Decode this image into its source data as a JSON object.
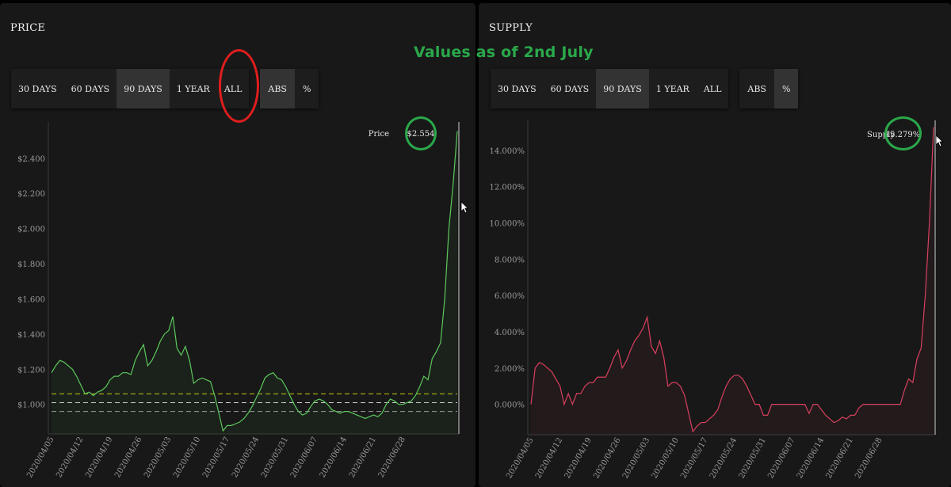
{
  "annotation": {
    "text": "Values as of 2nd July",
    "color": "#2aa84a"
  },
  "left_panel": {
    "title": "PRICE",
    "toolbar": {
      "range_buttons": [
        "30 DAYS",
        "60 DAYS",
        "90 DAYS",
        "1 YEAR",
        "ALL"
      ],
      "mode_buttons": [
        "ABS",
        "%"
      ],
      "active_range": "90 DAYS",
      "active_mode": "ABS"
    }
  },
  "right_panel": {
    "title": "SUPPLY",
    "toolbar": {
      "range_buttons": [
        "30 DAYS",
        "60 DAYS",
        "90 DAYS",
        "1 YEAR",
        "ALL"
      ],
      "mode_buttons": [
        "ABS",
        "%"
      ],
      "active_range": "90 DAYS",
      "active_mode": "%"
    }
  },
  "colors": {
    "price_line": "#5cc85c",
    "supply_line": "#d8405e",
    "ring_red": "#e01e1e",
    "ring_green": "#2aa84a"
  },
  "chart_data": [
    {
      "type": "line",
      "title": "PRICE",
      "series": [
        {
          "name": "Price",
          "current_value": "$2.554",
          "values": [
            1.18,
            1.22,
            1.25,
            1.24,
            1.22,
            1.2,
            1.16,
            1.11,
            1.06,
            1.07,
            1.05,
            1.07,
            1.08,
            1.1,
            1.14,
            1.16,
            1.16,
            1.18,
            1.18,
            1.17,
            1.25,
            1.3,
            1.34,
            1.22,
            1.25,
            1.3,
            1.36,
            1.4,
            1.42,
            1.5,
            1.32,
            1.28,
            1.33,
            1.25,
            1.12,
            1.14,
            1.15,
            1.14,
            1.13,
            1.05,
            0.95,
            0.85,
            0.88,
            0.88,
            0.89,
            0.9,
            0.92,
            0.95,
            0.99,
            1.04,
            1.09,
            1.15,
            1.17,
            1.18,
            1.15,
            1.14,
            1.1,
            1.05,
            1.0,
            0.96,
            0.94,
            0.95,
            0.99,
            1.02,
            1.03,
            1.02,
            1.0,
            0.97,
            0.96,
            0.95,
            0.96,
            0.96,
            0.95,
            0.94,
            0.93,
            0.92,
            0.93,
            0.94,
            0.93,
            0.95,
            1.0,
            1.03,
            1.02,
            1.0,
            1.0,
            1.01,
            1.02,
            1.05,
            1.1,
            1.16,
            1.14,
            1.26,
            1.3,
            1.35,
            1.6,
            2.0,
            2.25,
            2.554
          ]
        }
      ],
      "reference_lines": [
        1.06,
        1.01,
        0.96
      ],
      "x_ticks": [
        "2020/04/05",
        "2020/04/12",
        "2020/04/19",
        "2020/04/26",
        "2020/05/03",
        "2020/05/10",
        "2020/05/17",
        "2020/05/24",
        "2020/05/31",
        "2020/06/07",
        "2020/06/14",
        "2020/06/21",
        "2020/06/28"
      ],
      "y_ticks": [
        "$1.000",
        "$1.200",
        "$1.400",
        "$1.600",
        "$1.800",
        "$2.000",
        "$2.200",
        "$2.400"
      ],
      "ylim": [
        0.85,
        2.57
      ]
    },
    {
      "type": "line",
      "title": "SUPPLY",
      "series": [
        {
          "name": "Supply",
          "current_value": "15.279%",
          "values": [
            0.0,
            2.0,
            2.3,
            2.2,
            2.0,
            1.8,
            1.4,
            1.0,
            0.0,
            0.6,
            0.0,
            0.6,
            0.6,
            1.0,
            1.2,
            1.2,
            1.5,
            1.5,
            1.5,
            2.0,
            2.6,
            3.0,
            2.0,
            2.4,
            3.0,
            3.5,
            3.8,
            4.2,
            4.8,
            3.2,
            2.8,
            3.5,
            2.6,
            1.0,
            1.2,
            1.2,
            1.0,
            0.5,
            -0.5,
            -1.5,
            -1.2,
            -1.0,
            -1.0,
            -0.8,
            -0.6,
            -0.3,
            0.4,
            1.0,
            1.4,
            1.6,
            1.6,
            1.4,
            1.0,
            0.5,
            0.0,
            0.0,
            -0.6,
            -0.6,
            0.0,
            0.0,
            0.0,
            0.0,
            0.0,
            0.0,
            0.0,
            0.0,
            0.0,
            -0.5,
            0.0,
            0.0,
            -0.3,
            -0.6,
            -0.8,
            -1.0,
            -0.9,
            -0.7,
            -0.8,
            -0.6,
            -0.6,
            -0.2,
            0.0,
            0.0,
            0.0,
            0.0,
            0.0,
            0.0,
            0.0,
            0.0,
            0.0,
            0.0,
            0.8,
            1.4,
            1.2,
            2.5,
            3.1,
            6.0,
            10.0,
            15.279
          ]
        }
      ],
      "x_ticks": [
        "2020/04/05",
        "2020/04/12",
        "2020/04/19",
        "2020/04/26",
        "2020/05/03",
        "2020/05/10",
        "2020/05/17",
        "2020/05/24",
        "2020/05/31",
        "2020/06/07",
        "2020/06/14",
        "2020/06/21",
        "2020/06/28"
      ],
      "y_ticks": [
        "0.000%",
        "2.000%",
        "4.000%",
        "6.000%",
        "8.000%",
        "10.000%",
        "12.000%",
        "14.000%"
      ],
      "ylim": [
        -1.5,
        15.3
      ]
    }
  ]
}
